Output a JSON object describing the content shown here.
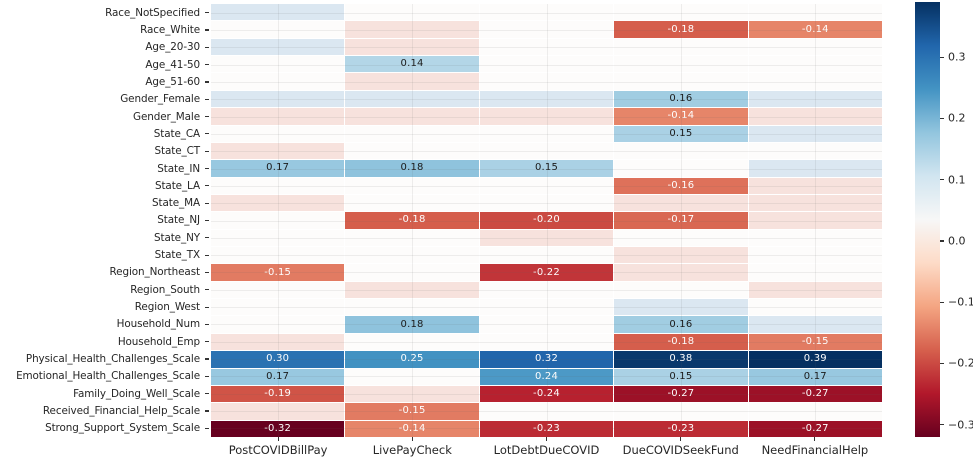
{
  "chart_data": {
    "type": "heatmap",
    "title": "",
    "x_axis_labels": [
      "PostCOVIDBillPay",
      "LivePayCheck",
      "LotDebtDueCOVID",
      "DueCOVIDSeekFund",
      "NeedFinancialHelp"
    ],
    "y_axis_labels": [
      "Race_NotSpecified",
      "Race_White",
      "Age_20-30",
      "Age_41-50",
      "Age_51-60",
      "Gender_Female",
      "Gender_Male",
      "State_CA",
      "State_CT",
      "State_IN",
      "State_LA",
      "State_MA",
      "State_NJ",
      "State_NY",
      "State_TX",
      "Region_Northeast",
      "Region_South",
      "Region_West",
      "Household_Num",
      "Household_Emp",
      "Physical_Health_Challenges_Scale",
      "Emotional_Health_Challenges_Scale",
      "Family_Doing_Well_Scale",
      "Received_Financial_Help_Scale",
      "Strong_Support_System_Scale"
    ],
    "annotated_values": [
      [
        null,
        null,
        null,
        null,
        null
      ],
      [
        null,
        null,
        null,
        -0.18,
        -0.14
      ],
      [
        null,
        null,
        null,
        null,
        null
      ],
      [
        null,
        0.14,
        null,
        null,
        null
      ],
      [
        null,
        null,
        null,
        null,
        null
      ],
      [
        null,
        null,
        null,
        0.16,
        null
      ],
      [
        null,
        null,
        null,
        -0.14,
        null
      ],
      [
        null,
        null,
        null,
        0.15,
        null
      ],
      [
        null,
        null,
        null,
        null,
        null
      ],
      [
        0.17,
        0.18,
        0.15,
        null,
        null
      ],
      [
        null,
        null,
        null,
        -0.16,
        null
      ],
      [
        null,
        null,
        null,
        null,
        null
      ],
      [
        null,
        -0.18,
        -0.2,
        -0.17,
        null
      ],
      [
        null,
        null,
        null,
        null,
        null
      ],
      [
        null,
        null,
        null,
        null,
        null
      ],
      [
        -0.15,
        null,
        -0.22,
        null,
        null
      ],
      [
        null,
        null,
        null,
        null,
        null
      ],
      [
        null,
        null,
        null,
        null,
        null
      ],
      [
        null,
        0.18,
        null,
        0.16,
        null
      ],
      [
        null,
        null,
        null,
        -0.18,
        -0.15
      ],
      [
        0.3,
        0.25,
        0.32,
        0.38,
        0.39
      ],
      [
        0.17,
        null,
        0.24,
        0.15,
        0.17
      ],
      [
        -0.19,
        null,
        -0.24,
        -0.27,
        -0.27
      ],
      [
        null,
        -0.15,
        null,
        null,
        null
      ],
      [
        -0.32,
        -0.14,
        -0.23,
        -0.23,
        -0.27
      ]
    ],
    "cell_tints": [
      "BWWWW",
      "WPWXX",
      "BPWWW",
      "WXWWW",
      "WPWWW",
      "BBBXB",
      "PPPXP",
      "WWWXB",
      "PWWWW",
      "XXXWB",
      "WWWXP",
      "PWWPP",
      "WXXXP",
      "WWPWW",
      "WWWPW",
      "XWXPW",
      "WPWWP",
      "WWWBW",
      "WXWXB",
      "PWWXX",
      "XXXXX",
      "XWXXX",
      "XPXXX",
      "PXWWW",
      "XXXXX"
    ],
    "faint_tint_colors": {
      "B": "#dbe7f1",
      "P": "#f7e2dd",
      "W": "#fdfcfb"
    },
    "faint_tint_values_estimate": {
      "B": 0.08,
      "P": -0.05,
      "W": 0.0
    },
    "annotation_text_colors": {
      "light": "#ffffff",
      "dark": "#1a1a1a"
    },
    "colorbar": {
      "colormap_name": "RdBu",
      "vmin": -0.32,
      "vmax": 0.39,
      "ticks": [
        {
          "value": 0.3,
          "label": "0.3"
        },
        {
          "value": 0.2,
          "label": "0.2"
        },
        {
          "value": 0.1,
          "label": "0.1"
        },
        {
          "value": 0.0,
          "label": "0.0"
        },
        {
          "value": -0.1,
          "label": "−0.1"
        },
        {
          "value": -0.2,
          "label": "−0.2"
        },
        {
          "value": -0.3,
          "label": "−0.3"
        }
      ],
      "colormap_stops": [
        {
          "t": 0.0,
          "color": "#67001f"
        },
        {
          "t": 0.1,
          "color": "#b2182b"
        },
        {
          "t": 0.2,
          "color": "#d6604d"
        },
        {
          "t": 0.3,
          "color": "#f4a582"
        },
        {
          "t": 0.4,
          "color": "#fddbc7"
        },
        {
          "t": 0.5,
          "color": "#f7f7f7"
        },
        {
          "t": 0.6,
          "color": "#d1e5f0"
        },
        {
          "t": 0.7,
          "color": "#92c5de"
        },
        {
          "t": 0.8,
          "color": "#4393c3"
        },
        {
          "t": 0.9,
          "color": "#2166ac"
        },
        {
          "t": 1.0,
          "color": "#053061"
        }
      ]
    },
    "grid_on": true,
    "legend_position": "right-colorbar"
  }
}
